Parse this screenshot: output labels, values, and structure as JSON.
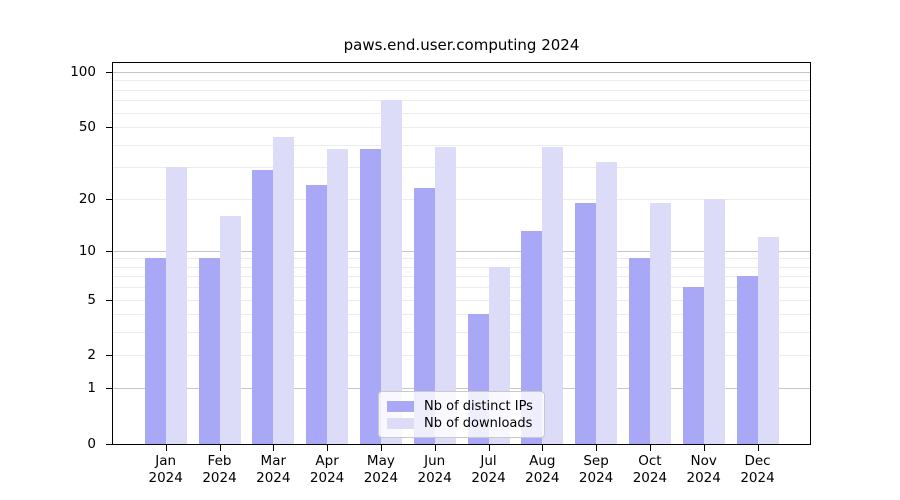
{
  "title": "paws.end.user.computing 2024",
  "colors": {
    "ips_bar": "#a8a8f6",
    "downloads_bar": "#dcdcf9",
    "grid_minor": "#ececec",
    "grid_major": "#c6c6c6",
    "axis": "#000000"
  },
  "legend": {
    "items": [
      {
        "label": "Nb of distinct IPs",
        "series_key": "ips"
      },
      {
        "label": "Nb of downloads",
        "series_key": "downloads"
      }
    ]
  },
  "chart_data": {
    "type": "bar",
    "title": "paws.end.user.computing 2024",
    "categories": [
      "Jan",
      "Feb",
      "Mar",
      "Apr",
      "May",
      "Jun",
      "Jul",
      "Aug",
      "Sep",
      "Oct",
      "Nov",
      "Dec"
    ],
    "year_label": "2024",
    "series": [
      {
        "name": "Nb of distinct IPs",
        "key": "ips",
        "values": [
          9,
          9,
          29,
          24,
          38,
          23,
          4,
          13,
          19,
          9,
          6,
          7
        ]
      },
      {
        "name": "Nb of downloads",
        "key": "downloads",
        "values": [
          30,
          16,
          44,
          38,
          70,
          39,
          8,
          39,
          32,
          19,
          20,
          12
        ]
      }
    ],
    "xlabel": "",
    "ylabel": "",
    "yscale": "log1p",
    "ylim": [
      0,
      112
    ],
    "yticks": [
      0,
      1,
      2,
      5,
      10,
      20,
      50,
      100
    ],
    "grid": true,
    "grid_minor_values": [
      2,
      3,
      4,
      5,
      6,
      7,
      8,
      9,
      20,
      30,
      40,
      50,
      60,
      70,
      80,
      90
    ],
    "grid_major_values": [
      1,
      10,
      100
    ],
    "legend_position": "bottom-center"
  }
}
